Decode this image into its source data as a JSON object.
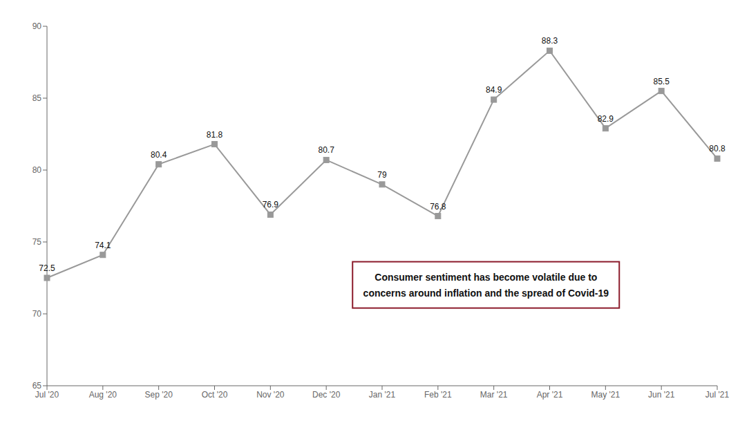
{
  "chart_data": {
    "type": "line",
    "categories": [
      "Jul '20",
      "Aug '20",
      "Sep '20",
      "Oct '20",
      "Nov '20",
      "Dec '20",
      "Jan '21",
      "Feb '21",
      "Mar '21",
      "Apr '21",
      "May '21",
      "Jun '21",
      "Jul '21"
    ],
    "values": [
      72.5,
      74.1,
      80.4,
      81.8,
      76.9,
      80.7,
      79.0,
      76.8,
      84.9,
      88.3,
      82.9,
      85.5,
      80.8
    ],
    "color": "#999999",
    "marker": "square",
    "ylim": [
      65,
      90
    ],
    "yticks": [
      65,
      70,
      75,
      80,
      85,
      90
    ],
    "grid": false,
    "data_labels": true,
    "annotations": [
      "Consumer sentiment has become volatile due to\nconcerns around inflation and the spread of Covid-19"
    ]
  }
}
